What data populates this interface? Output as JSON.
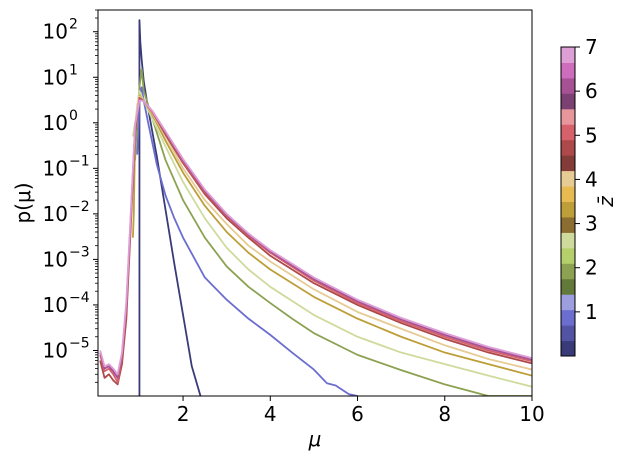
{
  "chart_data": {
    "type": "line",
    "xlabel": "μ",
    "ylabel": "p(μ)",
    "xscale": "linear",
    "yscale": "log",
    "xlim": [
      0.05,
      10
    ],
    "ylim": [
      1e-06,
      300
    ],
    "grid": false,
    "x_ticks": [
      {
        "value": 2,
        "label": "2"
      },
      {
        "value": 4,
        "label": "4"
      },
      {
        "value": 6,
        "label": "6"
      },
      {
        "value": 8,
        "label": "8"
      },
      {
        "value": 10,
        "label": "10"
      }
    ],
    "y_ticks": [
      {
        "exp": 2,
        "label": "10",
        "sup": "2"
      },
      {
        "exp": 1,
        "label": "10",
        "sup": "1"
      },
      {
        "exp": 0,
        "label": "10",
        "sup": "0"
      },
      {
        "exp": -1,
        "label": "10",
        "sup": "−1"
      },
      {
        "exp": -2,
        "label": "10",
        "sup": "−2"
      },
      {
        "exp": -3,
        "label": "10",
        "sup": "−3"
      },
      {
        "exp": -4,
        "label": "10",
        "sup": "−4"
      },
      {
        "exp": -5,
        "label": "10",
        "sup": "−5"
      }
    ],
    "colorbar": {
      "label": "z̄",
      "colormap": "tab20b",
      "range": [
        0,
        7
      ],
      "ticks": [
        "1",
        "2",
        "3",
        "4",
        "5",
        "6",
        "7"
      ],
      "tick_values": [
        1,
        2,
        3,
        4,
        5,
        6,
        7
      ],
      "colors": [
        "#393b79",
        "#5254a3",
        "#6b6ecf",
        "#9c9ede",
        "#637939",
        "#8ca252",
        "#b5cf6b",
        "#cedb9c",
        "#8c6d31",
        "#bd9e39",
        "#e7ba52",
        "#e7cb94",
        "#843c39",
        "#ad494a",
        "#d6616b",
        "#e7969c",
        "#7b4173",
        "#a55194",
        "#ce6dbd",
        "#de9ed6"
      ]
    },
    "series": [
      {
        "z": 0.1,
        "color": "#393b79",
        "points": [
          [
            1.0,
            1e-06
          ],
          [
            1.0,
            180
          ],
          [
            1.02,
            60
          ],
          [
            1.05,
            25
          ],
          [
            1.1,
            8
          ],
          [
            1.2,
            2
          ],
          [
            1.4,
            0.18
          ],
          [
            1.6,
            0.012
          ],
          [
            1.8,
            0.0008
          ],
          [
            2.0,
            6e-05
          ],
          [
            2.2,
            4.5e-06
          ],
          [
            2.4,
            1e-06
          ]
        ]
      },
      {
        "z": 0.8,
        "color": "#6b6ecf",
        "points": [
          [
            0.95,
            0.2
          ],
          [
            0.98,
            0.9
          ],
          [
            1.0,
            4
          ],
          [
            1.05,
            6
          ],
          [
            1.1,
            3
          ],
          [
            1.2,
            1.0
          ],
          [
            1.4,
            0.12
          ],
          [
            1.6,
            0.025
          ],
          [
            1.8,
            0.008
          ],
          [
            2.0,
            0.003
          ],
          [
            2.5,
            0.0004
          ],
          [
            3.0,
            0.00013
          ],
          [
            3.5,
            5e-05
          ],
          [
            4.0,
            2.2e-05
          ],
          [
            4.5,
            9e-06
          ],
          [
            5.0,
            3.8e-06
          ],
          [
            5.3,
            1.9e-06
          ],
          [
            5.5,
            1.7e-06
          ],
          [
            5.8,
            1.1e-06
          ],
          [
            6.0,
            1e-06
          ]
        ]
      },
      {
        "z": 1.9,
        "color": "#8ca252",
        "points": [
          [
            0.9,
            0.15
          ],
          [
            0.95,
            1.5
          ],
          [
            1.0,
            6
          ],
          [
            1.05,
            15
          ],
          [
            1.1,
            5
          ],
          [
            1.3,
            1.2
          ],
          [
            1.6,
            0.15
          ],
          [
            2.0,
            0.02
          ],
          [
            2.5,
            0.003
          ],
          [
            3.0,
            0.0007
          ],
          [
            3.5,
            0.00025
          ],
          [
            4.0,
            0.00011
          ],
          [
            4.5,
            5e-05
          ],
          [
            5.0,
            2.4e-05
          ],
          [
            6.0,
            8e-06
          ],
          [
            7.0,
            3.7e-06
          ],
          [
            8.0,
            1.8e-06
          ],
          [
            9.0,
            1e-06
          ],
          [
            10.0,
            1e-06
          ]
        ]
      },
      {
        "z": 2.8,
        "color": "#cedb9c",
        "points": [
          [
            0.85,
            0.5
          ],
          [
            0.95,
            2
          ],
          [
            1.0,
            5
          ],
          [
            1.1,
            3
          ],
          [
            1.3,
            1.2
          ],
          [
            1.6,
            0.3
          ],
          [
            2.0,
            0.05
          ],
          [
            2.5,
            0.008
          ],
          [
            3.0,
            0.0018
          ],
          [
            3.5,
            0.0006
          ],
          [
            4.0,
            0.00025
          ],
          [
            5.0,
            6e-05
          ],
          [
            6.0,
            2e-05
          ],
          [
            7.0,
            9e-06
          ],
          [
            8.0,
            5e-06
          ],
          [
            9.0,
            2.8e-06
          ],
          [
            10.0,
            1.6e-06
          ]
        ]
      },
      {
        "z": 3.4,
        "color": "#bd9e39",
        "points": [
          [
            0.85,
            0.003
          ],
          [
            0.87,
            0.01
          ],
          [
            0.9,
            0.5
          ],
          [
            0.95,
            2
          ],
          [
            1.0,
            4
          ],
          [
            1.1,
            3
          ],
          [
            1.3,
            1.5
          ],
          [
            1.6,
            0.4
          ],
          [
            2.0,
            0.08
          ],
          [
            2.5,
            0.015
          ],
          [
            3.0,
            0.004
          ],
          [
            3.5,
            0.0014
          ],
          [
            4.0,
            0.0006
          ],
          [
            5.0,
            0.00015
          ],
          [
            6.0,
            5e-05
          ],
          [
            7.0,
            2e-05
          ],
          [
            8.0,
            9e-06
          ],
          [
            9.0,
            5e-06
          ],
          [
            10.0,
            2.8e-06
          ]
        ]
      },
      {
        "z": 4.1,
        "color": "#e7cb94",
        "points": [
          [
            0.88,
            0.5
          ],
          [
            0.95,
            2.5
          ],
          [
            1.0,
            3.8
          ],
          [
            1.1,
            3
          ],
          [
            1.3,
            1.6
          ],
          [
            1.6,
            0.5
          ],
          [
            2.0,
            0.1
          ],
          [
            2.5,
            0.02
          ],
          [
            3.0,
            0.006
          ],
          [
            3.5,
            0.002
          ],
          [
            4.0,
            0.0009
          ],
          [
            5.0,
            0.00022
          ],
          [
            6.0,
            7e-05
          ],
          [
            7.0,
            3e-05
          ],
          [
            8.0,
            1.3e-05
          ],
          [
            9.0,
            6.5e-06
          ],
          [
            10.0,
            3.8e-06
          ]
        ]
      },
      {
        "z": 4.7,
        "color": "#ad494a",
        "points": [
          [
            0.1,
            6e-06
          ],
          [
            0.2,
            2.5e-06
          ],
          [
            0.3,
            3e-06
          ],
          [
            0.4,
            2.2e-06
          ],
          [
            0.5,
            1.8e-06
          ],
          [
            0.6,
            5e-06
          ],
          [
            0.7,
            5e-05
          ],
          [
            0.8,
            0.005
          ],
          [
            0.9,
            0.6
          ],
          [
            1.0,
            3.5
          ],
          [
            1.1,
            3
          ],
          [
            1.3,
            1.7
          ],
          [
            1.6,
            0.55
          ],
          [
            2.0,
            0.13
          ],
          [
            2.5,
            0.027
          ],
          [
            3.0,
            0.008
          ],
          [
            3.5,
            0.003
          ],
          [
            4.0,
            0.0012
          ],
          [
            5.0,
            0.0003
          ],
          [
            6.0,
            0.0001
          ],
          [
            7.0,
            4e-05
          ],
          [
            8.0,
            1.8e-05
          ],
          [
            9.0,
            9e-06
          ],
          [
            10.0,
            5.2e-06
          ]
        ]
      },
      {
        "z": 5.3,
        "color": "#d6616b",
        "points": [
          [
            0.1,
            8e-06
          ],
          [
            0.2,
            3.5e-06
          ],
          [
            0.3,
            4e-06
          ],
          [
            0.4,
            3e-06
          ],
          [
            0.5,
            2e-06
          ],
          [
            0.6,
            7e-06
          ],
          [
            0.7,
            8e-05
          ],
          [
            0.8,
            0.007
          ],
          [
            0.9,
            0.7
          ],
          [
            1.0,
            3.3
          ],
          [
            1.1,
            3
          ],
          [
            1.3,
            1.7
          ],
          [
            1.6,
            0.6
          ],
          [
            2.0,
            0.14
          ],
          [
            2.5,
            0.03
          ],
          [
            3.0,
            0.009
          ],
          [
            3.5,
            0.0033
          ],
          [
            4.0,
            0.0014
          ],
          [
            5.0,
            0.00034
          ],
          [
            6.0,
            0.00011
          ],
          [
            7.0,
            4.4e-05
          ],
          [
            8.0,
            2e-05
          ],
          [
            9.0,
            1e-05
          ],
          [
            10.0,
            5.8e-06
          ]
        ]
      },
      {
        "z": 6.1,
        "color": "#a55194",
        "points": [
          [
            0.1,
            9e-06
          ],
          [
            0.2,
            4e-06
          ],
          [
            0.3,
            4.5e-06
          ],
          [
            0.4,
            3.5e-06
          ],
          [
            0.5,
            2.5e-06
          ],
          [
            0.6,
            8e-06
          ],
          [
            0.7,
            0.0001
          ],
          [
            0.8,
            0.008
          ],
          [
            0.9,
            0.8
          ],
          [
            1.0,
            3.2
          ],
          [
            1.1,
            3
          ],
          [
            1.3,
            1.8
          ],
          [
            1.6,
            0.62
          ],
          [
            2.0,
            0.15
          ],
          [
            2.5,
            0.032
          ],
          [
            3.0,
            0.0095
          ],
          [
            3.5,
            0.0035
          ],
          [
            4.0,
            0.0015
          ],
          [
            5.0,
            0.00037
          ],
          [
            6.0,
            0.00012
          ],
          [
            7.0,
            4.8e-05
          ],
          [
            8.0,
            2.2e-05
          ],
          [
            9.0,
            1.1e-05
          ],
          [
            10.0,
            6.3e-06
          ]
        ]
      },
      {
        "z": 6.8,
        "color": "#de9ed6",
        "points": [
          [
            0.1,
            1e-05
          ],
          [
            0.2,
            4.5e-06
          ],
          [
            0.3,
            5e-06
          ],
          [
            0.4,
            4e-06
          ],
          [
            0.5,
            3e-06
          ],
          [
            0.6,
            9e-06
          ],
          [
            0.7,
            0.00012
          ],
          [
            0.8,
            0.01
          ],
          [
            0.9,
            0.9
          ],
          [
            1.0,
            3.1
          ],
          [
            1.1,
            3
          ],
          [
            1.3,
            1.8
          ],
          [
            1.6,
            0.65
          ],
          [
            2.0,
            0.16
          ],
          [
            2.5,
            0.034
          ],
          [
            3.0,
            0.01
          ],
          [
            3.5,
            0.0037
          ],
          [
            4.0,
            0.0016
          ],
          [
            5.0,
            0.0004
          ],
          [
            6.0,
            0.00013
          ],
          [
            7.0,
            5.2e-05
          ],
          [
            8.0,
            2.4e-05
          ],
          [
            9.0,
            1.2e-05
          ],
          [
            10.0,
            6.8e-06
          ]
        ]
      }
    ]
  }
}
